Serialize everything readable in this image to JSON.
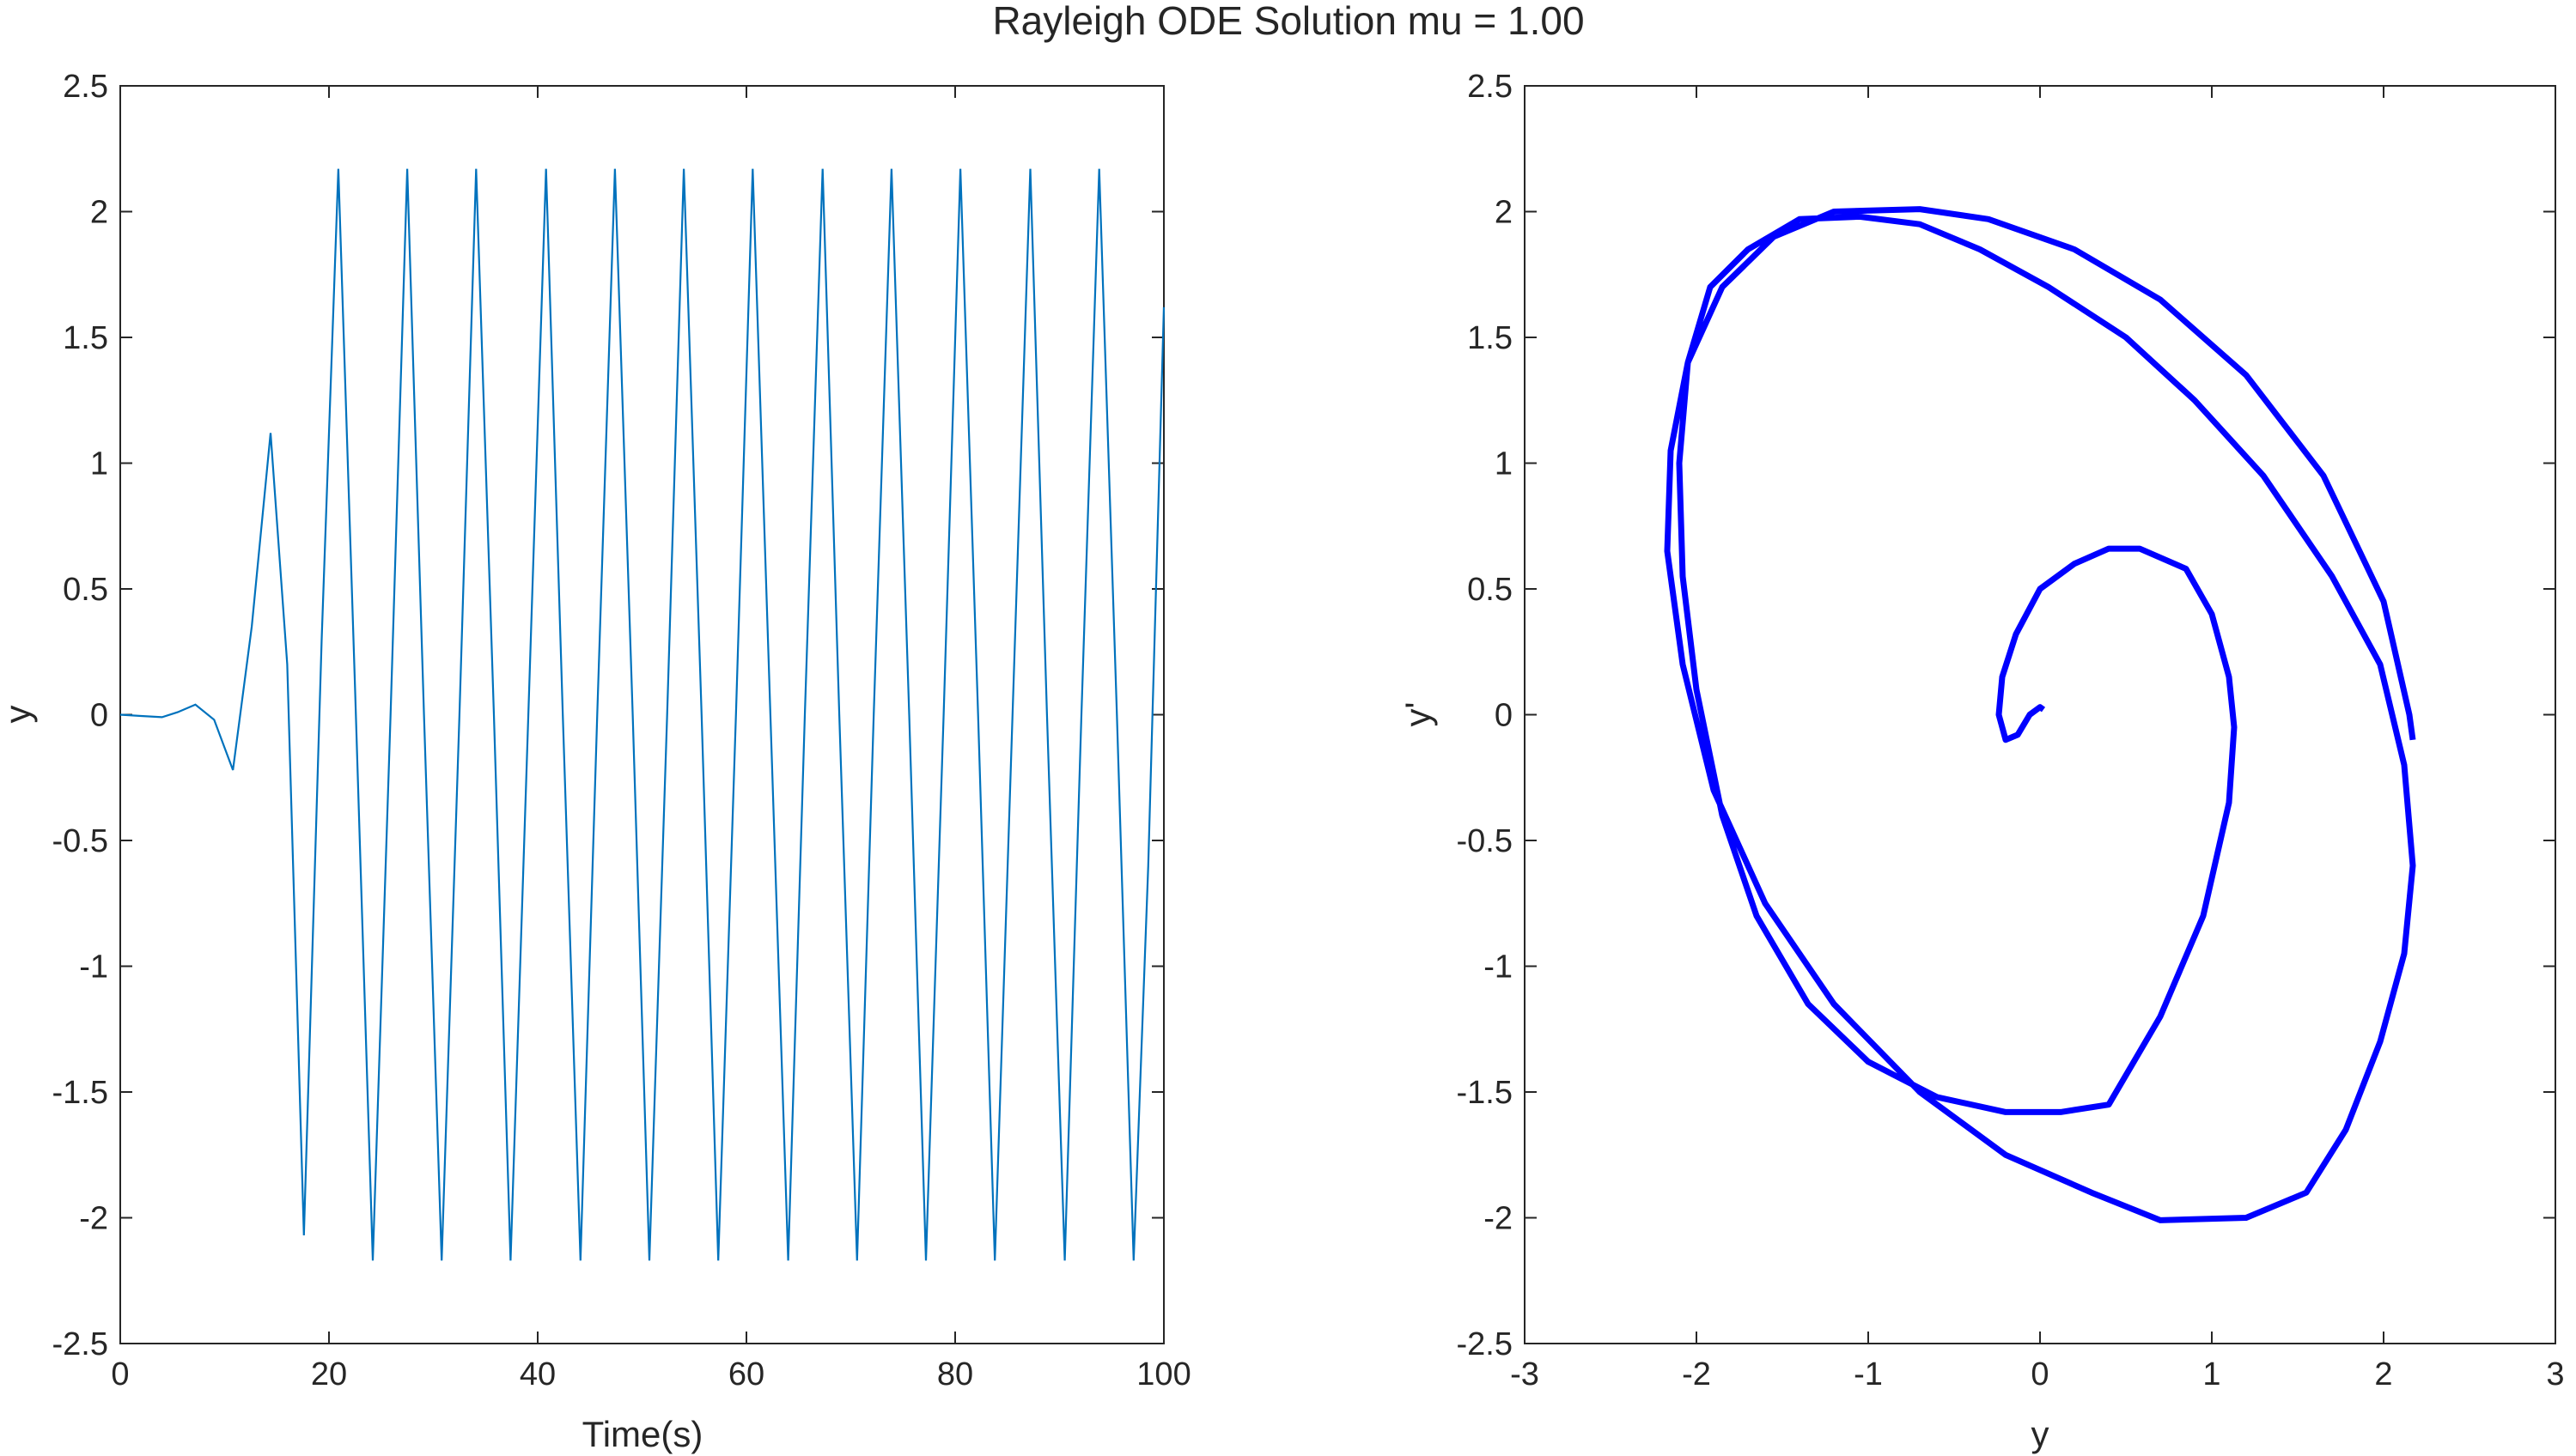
{
  "figure_title": "Rayleigh ODE Solution mu = 1.00",
  "chart_data": [
    {
      "type": "line",
      "title": "",
      "xlabel": "Time(s)",
      "ylabel": "y",
      "xlim": [
        0,
        100
      ],
      "ylim": [
        -2.5,
        2.5
      ],
      "xticks": [
        0,
        20,
        40,
        60,
        80,
        100
      ],
      "yticks": [
        -2.5,
        -2,
        -1.5,
        -1,
        -0.5,
        0,
        0.5,
        1,
        1.5,
        2,
        2.5
      ],
      "grid": false,
      "line_color": "#0072BD",
      "series": [
        {
          "x": [
            0,
            2,
            4,
            5.5,
            7.2,
            9,
            10.8,
            12.6,
            14.4,
            16,
            17.6,
            19.3,
            20.9,
            22.5,
            24.2,
            25.9,
            27.5,
            29.1,
            30.8,
            32.5,
            34.1,
            35.8,
            37.4,
            39.1,
            40.8,
            42.4,
            44.1,
            45.7,
            47.4,
            49.1,
            50.7,
            52.4,
            54.0,
            55.7,
            57.3,
            59.0,
            60.6,
            62.3,
            64.0,
            65.6,
            67.3,
            68.9,
            70.6,
            72.2,
            73.9,
            75.6,
            77.2,
            78.9,
            80.5,
            82.2,
            83.8,
            85.5,
            87.2,
            88.8,
            90.5,
            92.1,
            93.8,
            95.5,
            97.1,
            98.5,
            100
          ],
          "y": [
            0,
            -0.005,
            -0.01,
            0.01,
            0.04,
            -0.02,
            -0.22,
            0.35,
            1.12,
            0.2,
            -2.07,
            0.3,
            2.17,
            0.1,
            -2.17,
            0,
            2.17,
            0,
            -2.17,
            0,
            2.17,
            0,
            -2.17,
            0,
            2.17,
            0,
            -2.17,
            0,
            2.17,
            0,
            -2.17,
            0,
            2.17,
            0,
            -2.17,
            0,
            2.17,
            0,
            -2.17,
            0,
            2.17,
            0,
            -2.17,
            0,
            2.17,
            0,
            -2.17,
            0,
            2.17,
            0,
            -2.17,
            0,
            2.17,
            0,
            -2.17,
            0,
            2.17,
            0,
            -2.17,
            -0.6,
            1.62
          ]
        }
      ]
    },
    {
      "type": "line",
      "title": "",
      "xlabel": "y",
      "ylabel": "y'",
      "xlim": [
        -3,
        3
      ],
      "ylim": [
        -2.5,
        2.5
      ],
      "xticks": [
        -3,
        -2,
        -1,
        0,
        1,
        2,
        3
      ],
      "yticks": [
        -2.5,
        -2,
        -1.5,
        -1,
        -0.5,
        0,
        0.5,
        1,
        1.5,
        2,
        2.5
      ],
      "grid": false,
      "line_color": "#0000FF",
      "series": [
        {
          "x": [
            0.02,
            0.0,
            -0.06,
            -0.13,
            -0.2,
            -0.24,
            -0.22,
            -0.14,
            0.0,
            0.2,
            0.4,
            0.58,
            0.85,
            1.0,
            1.1,
            1.13,
            1.1,
            0.95,
            0.7,
            0.4,
            0.12,
            -0.2,
            -0.6,
            -1.0,
            -1.35,
            -1.65,
            -1.85,
            -2.0,
            -2.08,
            -2.1,
            -2.05,
            -1.92,
            -1.7,
            -1.4,
            -1.05,
            -0.7,
            -0.35,
            0.05,
            0.5,
            0.9,
            1.3,
            1.7,
            1.98,
            2.12,
            2.17,
            2.12,
            1.98,
            1.78,
            1.55,
            1.2,
            0.7,
            0.3,
            -0.2,
            -0.7,
            -1.2,
            -1.6,
            -1.9,
            -2.08,
            -2.17,
            -2.15,
            -2.05,
            -1.85,
            -1.55,
            -1.2,
            -0.7,
            -0.3,
            0.2,
            0.7,
            1.2,
            1.65,
            2.0,
            2.15,
            2.17
          ],
          "y": [
            0.02,
            0.03,
            0.0,
            -0.08,
            -0.1,
            0.0,
            0.15,
            0.32,
            0.5,
            0.6,
            0.66,
            0.66,
            0.58,
            0.4,
            0.15,
            -0.05,
            -0.35,
            -0.8,
            -1.2,
            -1.55,
            -1.58,
            -1.58,
            -1.52,
            -1.38,
            -1.15,
            -0.8,
            -0.4,
            0.1,
            0.55,
            1.0,
            1.4,
            1.7,
            1.85,
            1.97,
            1.98,
            1.95,
            1.85,
            1.7,
            1.5,
            1.25,
            0.95,
            0.55,
            0.2,
            -0.2,
            -0.6,
            -0.95,
            -1.3,
            -1.65,
            -1.9,
            -2.0,
            -2.01,
            -1.9,
            -1.75,
            -1.5,
            -1.15,
            -0.75,
            -0.3,
            0.2,
            0.65,
            1.05,
            1.4,
            1.7,
            1.9,
            2.0,
            2.01,
            1.97,
            1.85,
            1.65,
            1.35,
            0.95,
            0.45,
            0.0,
            -0.1
          ]
        }
      ]
    }
  ]
}
